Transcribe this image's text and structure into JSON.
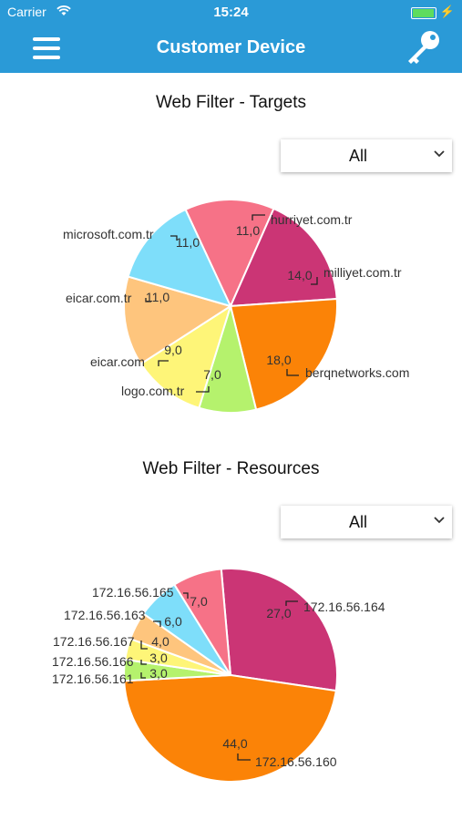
{
  "status_bar": {
    "carrier": "Carrier",
    "time": "15:24",
    "battery_level": 0.9
  },
  "nav": {
    "title": "Customer Device"
  },
  "charts": {
    "targets": {
      "title": "Web Filter - Targets",
      "filter_value": "All"
    },
    "resources": {
      "title": "Web Filter - Resources",
      "filter_value": "All"
    }
  },
  "chart_data": [
    {
      "type": "pie",
      "title": "Web Filter - Targets",
      "slices": [
        {
          "label": "hurriyet.com.tr",
          "value": 11.0,
          "value_label": "11,0",
          "color": "#f67287"
        },
        {
          "label": "milliyet.com.tr",
          "value": 14.0,
          "value_label": "14,0",
          "color": "#cb3575"
        },
        {
          "label": "berqnetworks.com",
          "value": 18.0,
          "value_label": "18,0",
          "color": "#fb8307"
        },
        {
          "label": "logo.com.tr",
          "value": 7.0,
          "value_label": "7,0",
          "color": "#b5f26d"
        },
        {
          "label": "eicar.com",
          "value": 9.0,
          "value_label": "9,0",
          "color": "#fef578"
        },
        {
          "label": "eicar.com.tr",
          "value": 11.0,
          "value_label": "11,0",
          "color": "#fec57d"
        },
        {
          "label": "microsoft.com.tr",
          "value": 11.0,
          "value_label": "11,0",
          "color": "#7edefa"
        }
      ]
    },
    {
      "type": "pie",
      "title": "Web Filter - Resources",
      "slices": [
        {
          "label": "172.16.56.164",
          "value": 27.0,
          "value_label": "27,0",
          "color": "#cb3575"
        },
        {
          "label": "172.16.56.160",
          "value": 44.0,
          "value_label": "44,0",
          "color": "#fb8307"
        },
        {
          "label": "172.16.56.161",
          "value": 3.0,
          "value_label": "3,0",
          "color": "#b5f26d"
        },
        {
          "label": "172.16.56.166",
          "value": 3.0,
          "value_label": "3,0",
          "color": "#fef578"
        },
        {
          "label": "172.16.56.167",
          "value": 4.0,
          "value_label": "4,0",
          "color": "#fec57d"
        },
        {
          "label": "172.16.56.163",
          "value": 6.0,
          "value_label": "6,0",
          "color": "#7edefa"
        },
        {
          "label": "172.16.56.165",
          "value": 7.0,
          "value_label": "7,0",
          "color": "#f67287"
        }
      ]
    }
  ]
}
